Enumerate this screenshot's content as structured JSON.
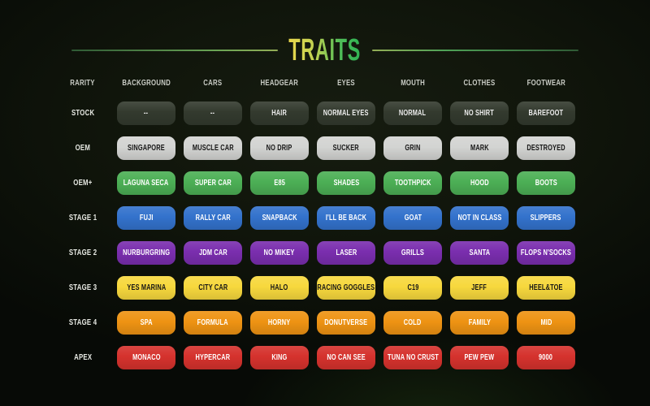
{
  "title": "TRAITS",
  "title_gradient": {
    "from": "#EAD74C",
    "to": "#2FB254"
  },
  "divider_color": "#57A25B",
  "background_color": "#0A0E07",
  "chart_data": {
    "type": "table",
    "title": "TRAITS",
    "columns": [
      "RARITY",
      "BACKGROUND",
      "CARS",
      "HEADGEAR",
      "EYES",
      "MOUTH",
      "CLOTHES",
      "FOOTWEAR"
    ],
    "rows": [
      {
        "rarity": "STOCK",
        "tier": "stock",
        "values": [
          "--",
          "--",
          "HAIR",
          "NORMAL EYES",
          "NORMAL",
          "NO SHIRT",
          "BAREFOOT"
        ]
      },
      {
        "rarity": "OEM",
        "tier": "oem",
        "values": [
          "SINGAPORE",
          "MUSCLE CAR",
          "NO DRIP",
          "SUCKER",
          "GRIN",
          "MARK",
          "DESTROYED"
        ]
      },
      {
        "rarity": "OEM+",
        "tier": "oem_plus",
        "values": [
          "LAGUNA SECA",
          "SUPER CAR",
          "E85",
          "SHADES",
          "TOOTHPICK",
          "HOOD",
          "BOOTS"
        ]
      },
      {
        "rarity": "STAGE 1",
        "tier": "stage1",
        "values": [
          "FUJI",
          "RALLY CAR",
          "SNAPBACK",
          "I'LL BE BACK",
          "GOAT",
          "NOT IN CLASS",
          "SLIPPERS"
        ]
      },
      {
        "rarity": "STAGE 2",
        "tier": "stage2",
        "values": [
          "NURBURGRING",
          "JDM CAR",
          "NO MIKEY",
          "LASER",
          "GRILLS",
          "SANTA",
          "FLOPS N'SOCKS"
        ]
      },
      {
        "rarity": "STAGE 3",
        "tier": "stage3",
        "values": [
          "YES MARINA",
          "CITY CAR",
          "HALO",
          "RACING GOGGLES",
          "C19",
          "JEFF",
          "HEEL&TOE"
        ]
      },
      {
        "rarity": "STAGE 4",
        "tier": "stage4",
        "values": [
          "SPA",
          "FORMULA",
          "HORNY",
          "DONUTVERSE",
          "COLD",
          "FAMILY",
          "MID"
        ]
      },
      {
        "rarity": "APEX",
        "tier": "apex",
        "values": [
          "MONACO",
          "HYPERCAR",
          "KING",
          "NO CAN SEE",
          "TUNA NO CRUST",
          "PEW PEW",
          "9000"
        ]
      }
    ],
    "tier_colors": {
      "stock": {
        "bg": "#333A2E",
        "text": "#ECECEC"
      },
      "oem": {
        "bg": "#D3D4D2",
        "text": "#151515"
      },
      "oem_plus": {
        "bg": "#4CAF55",
        "text": "#FFFFFF"
      },
      "stage1": {
        "bg": "#3372CC",
        "text": "#FFFFFF"
      },
      "stage2": {
        "bg": "#7A2EAE",
        "text": "#FFFFFF"
      },
      "stage3": {
        "bg": "#F7D83D",
        "text": "#161616"
      },
      "stage4": {
        "bg": "#EE9313",
        "text": "#FFFFFF"
      },
      "apex": {
        "bg": "#D5322D",
        "text": "#FFFFFF"
      }
    },
    "legend_position": "none",
    "grid": false
  }
}
